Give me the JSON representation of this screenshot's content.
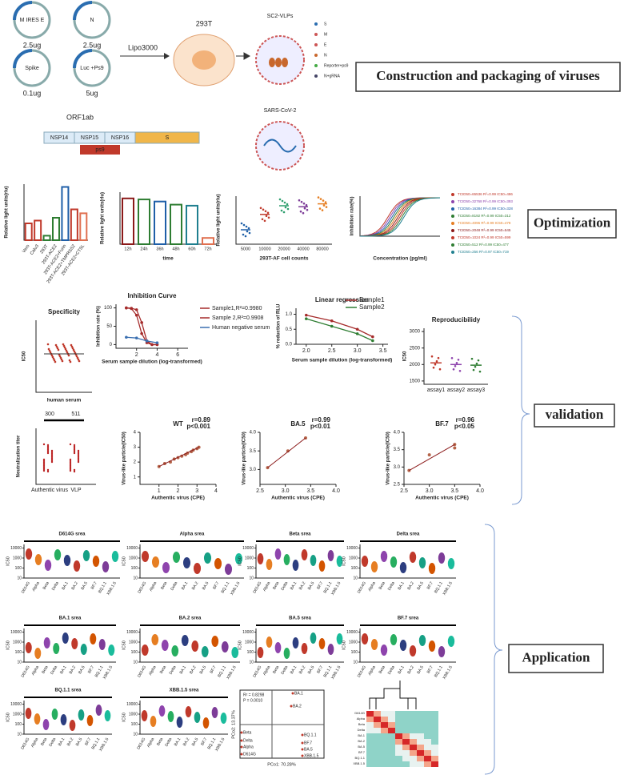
{
  "construction": {
    "plasmids": [
      {
        "label": "M IRES E",
        "amount": "2.5ug"
      },
      {
        "label": "N",
        "amount": "2.5ug"
      },
      {
        "label": "Spike",
        "amount": "0.1ug"
      },
      {
        "label": "Luc +Ps9",
        "amount": "5ug"
      }
    ],
    "reagent": "Lipo3000",
    "cell": "293T",
    "vlp": "SC2-VLPs",
    "vlp_legend": [
      "S",
      "M",
      "E",
      "N",
      "Reporter+ps9",
      "N+gRNA"
    ],
    "virus": "SARS-CoV-2",
    "orf": "ORF1ab",
    "segments": [
      "NSP14",
      "NSP15",
      "NSP16",
      "S"
    ],
    "ps9": "ps9",
    "box": "Construction and packaging of viruses"
  },
  "optimization": {
    "box": "Optimization",
    "cells": {
      "type": "bar",
      "ylabel": "Relative light units(rlu)",
      "categories": [
        "Vero",
        "Calu3",
        "293T",
        "293T-ACE2",
        "293T-ACE2+Furin",
        "293T-ACE2+TMPRSS2",
        "293T-ACE2+CTSL"
      ],
      "values": [
        30,
        35,
        8,
        40,
        95,
        55,
        48
      ],
      "colors": [
        "#c0392b",
        "#c0392b",
        "#2e7d32",
        "#2e7d32",
        "#1f5fa8",
        "#c0392b",
        "#e07050"
      ],
      "ylim": [
        0,
        100
      ]
    },
    "time": {
      "type": "bar",
      "ylabel": "Relative light units(rlu)",
      "xlabel": "time",
      "categories": [
        "12h",
        "24h",
        "36h",
        "48h",
        "60h",
        "72h"
      ],
      "values": [
        88,
        86,
        82,
        76,
        74,
        12
      ],
      "colors": [
        "#8b1a1a",
        "#2e7d32",
        "#1f5fa8",
        "#2e7d32",
        "#1f7f8f",
        "#e07050"
      ],
      "ylim": [
        0,
        100
      ]
    },
    "counts": {
      "type": "scatter",
      "ylabel": "Relative light units(rlu)",
      "xlabel": "293T-AF cell counts",
      "categories": [
        "5000",
        "10000",
        "20000",
        "40000",
        "80000"
      ],
      "values": [
        30,
        62,
        80,
        78,
        84
      ],
      "colors": [
        "#1f5fa8",
        "#c0392b",
        "#2e9e6e",
        "#7d3c98",
        "#e67e22"
      ],
      "ylim": [
        0,
        100
      ]
    },
    "curves": {
      "ylabel": "Inhibition rate(%)",
      "xlabel": "Concentration (pg/ml)",
      "legend": [
        "TCID50=65536 R²=0.99 IC50=486",
        "TCID50=32768 R²=0.99 IC50=393",
        "TCID50=16384 R²=0.99 IC50=328",
        "TCID50=8192 R²=0.99 IC50=312",
        "TCID50=4096 R²=0.99 IC50=478",
        "TCID50=2048 R²=0.99 IC50=545",
        "TCID50=1024 R²=0.99 IC50=599",
        "TCID50=512 R²=0.99 IC50=477",
        "TCID50=256 R²=0.97 IC50=719"
      ],
      "colors": [
        "#c0392b",
        "#8e44ad",
        "#1f5fa8",
        "#2e7d32",
        "#e67e22",
        "#8b1a1a",
        "#c0392b",
        "#2e7d32",
        "#1f7f8f"
      ]
    }
  },
  "validation": {
    "box": "validation",
    "specificity": {
      "title": "Specificity",
      "ylabel": "IC50",
      "xlabel": "human serum"
    },
    "inhibition": {
      "title": "Inhibition Curve",
      "ylabel": "Inhibition rate (%)",
      "xlabel": "Serum sample dilution (log-transformed)",
      "xlim": [
        0,
        7
      ],
      "ylim": [
        -10,
        110
      ],
      "xticks": [
        2,
        4,
        6
      ],
      "yticks": [
        0,
        50,
        100
      ],
      "series": [
        {
          "name": "Sample1,R²=0.9980",
          "color": "#a52a2a",
          "x": [
            1,
            1.5,
            2,
            2.5,
            3,
            3.5,
            4
          ],
          "values": [
            100,
            99,
            95,
            60,
            10,
            0,
            0
          ]
        },
        {
          "name": "Sample 2,R²=0.9908",
          "color": "#a52a2a",
          "x": [
            1,
            1.5,
            2,
            2.5,
            3,
            3.5,
            4
          ],
          "values": [
            100,
            98,
            80,
            30,
            5,
            0,
            0
          ]
        },
        {
          "name": "Human negative serum",
          "color": "#3a6fb0",
          "x": [
            1,
            2,
            3,
            4
          ],
          "values": [
            20,
            18,
            10,
            5
          ]
        }
      ]
    },
    "regression": {
      "title": "Linear regression",
      "ylabel": "% reduction of RLU",
      "xlabel": "Serum sample dilution (log-transformed)",
      "xlim": [
        1.8,
        3.6
      ],
      "ylim": [
        0,
        1.2
      ],
      "xticks": [
        {
          "value": 2,
          "label": "2.0"
        },
        2.5,
        {
          "value": 3,
          "label": "3.0"
        },
        3.5
      ],
      "yticks": [
        {
          "value": 0,
          "label": "0.0"
        },
        0.5,
        {
          "value": 1,
          "label": "1.0"
        }
      ],
      "series": [
        {
          "name": "Sample1",
          "color": "#a52a2a",
          "x": [
            2,
            2.5,
            3,
            3.3
          ],
          "values": [
            0.97,
            0.78,
            0.5,
            0.25
          ]
        },
        {
          "name": "Sample2",
          "color": "#2e7d32",
          "x": [
            2,
            2.5,
            3,
            3.3
          ],
          "values": [
            0.85,
            0.6,
            0.35,
            0.12
          ]
        }
      ]
    },
    "reproducibility": {
      "title": "Reproducibilidy",
      "ylabel": "IC50",
      "categories": [
        "assay1",
        "assay2",
        "assay3"
      ],
      "values": [
        2050,
        2000,
        1980
      ],
      "colors": [
        "#c0392b",
        "#8e44ad",
        "#2e7d32"
      ],
      "ylim": [
        1400,
        3100
      ],
      "yticks": [
        1500,
        2000,
        2500,
        3000
      ]
    },
    "titer": {
      "ylabel": "Neutralization titer",
      "categories": [
        "Authentic virus",
        "VLP"
      ],
      "labels": [
        "300",
        "511"
      ]
    },
    "wt": {
      "title": "WT",
      "r": "r=0.89",
      "p": "p<0.001",
      "ylabel": "Virus-like particle(IC50)",
      "xlabel": "Authentic virus (CPE)",
      "xlim": [
        0,
        4
      ],
      "ylim": [
        0.5,
        4
      ],
      "xticks": [
        1,
        2,
        3,
        4
      ],
      "yticks": [
        1,
        2,
        3,
        4
      ],
      "x": [
        1,
        1.3,
        1.6,
        1.8,
        2,
        2.2,
        2.4,
        2.5,
        2.7,
        2.8,
        3,
        3.1
      ],
      "values": [
        1.7,
        1.9,
        2,
        2.2,
        2.3,
        2.4,
        2.5,
        2.6,
        2.7,
        2.8,
        2.9,
        3
      ]
    },
    "ba5": {
      "title": "BA.5",
      "r": "r=0.99",
      "p": "p<0.01",
      "ylabel": "Virus-like particle(IC50)",
      "xlabel": "Authentic virus (CPE)",
      "xlim": [
        2.5,
        4
      ],
      "ylim": [
        2.6,
        4
      ],
      "xticks": [
        2.5,
        {
          "value": 3,
          "label": "3.0"
        },
        3.5,
        {
          "value": 4,
          "label": "4.0"
        }
      ],
      "yticks": [
        {
          "value": 3,
          "label": "3.0"
        },
        3.5,
        {
          "value": 4,
          "label": "4.0"
        }
      ],
      "x": [
        2.65,
        3.05,
        3.4
      ],
      "values": [
        3.05,
        3.5,
        3.85
      ]
    },
    "bf7": {
      "title": "BF.7",
      "r": "r=0.96",
      "p": "p<0.05",
      "ylabel": "Virus-like particle(IC50)",
      "xlabel": "Authentic virus (CPE)",
      "xlim": [
        2.5,
        4
      ],
      "ylim": [
        2.5,
        4
      ],
      "xticks": [
        2.5,
        {
          "value": 3,
          "label": "3.0"
        },
        3.5,
        {
          "value": 4,
          "label": "4.0"
        }
      ],
      "yticks": [
        2.5,
        {
          "value": 3,
          "label": "3.0"
        },
        3.5,
        {
          "value": 4,
          "label": "4.0"
        }
      ],
      "x": [
        2.6,
        3,
        3.5,
        3.5
      ],
      "values": [
        2.9,
        3.35,
        3.55,
        3.65
      ]
    }
  },
  "application": {
    "box": "Application",
    "ylabel": "IC50",
    "yticks": [
      10,
      100,
      1000,
      10000
    ],
    "variants": [
      "D614G",
      "Alpha",
      "Beta",
      "Delta",
      "BA.1",
      "BA.2",
      "BA.5",
      "BF.7",
      "BQ.1.1",
      "XBB.1.5"
    ],
    "panels": [
      "D614G srea",
      "Alpha srea",
      "Beta srea",
      "Delta srea",
      "BA.1 srea",
      "BA.2 srea",
      "BA.5 srea",
      "BF.7 srea",
      "BQ.1.1 srea",
      "XBB.1.5 srea"
    ],
    "pcoa": {
      "stat1": "R² = 0.8298",
      "stat2": "P = 0.0010",
      "xlabel": "PCo1: 70.28%",
      "ylabel": "PCo2: 13.37%",
      "points": [
        "BA.1",
        "BA.2",
        "Beta",
        "Delta",
        "Alpha",
        "D614G",
        "BQ.1.1",
        "BF.7",
        "BA.5",
        "XBB.1.5"
      ]
    }
  }
}
